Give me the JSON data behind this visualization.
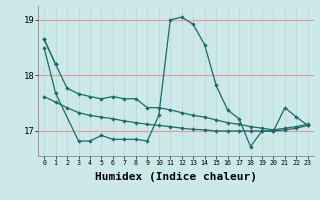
{
  "bg_color": "#cce8e8",
  "grid_color_v": "#b8d8d8",
  "grid_color_h": "#e89898",
  "line_color": "#1a6b6b",
  "xlabel": "Humidex (Indice chaleur)",
  "xlim": [
    -0.5,
    23.5
  ],
  "ylim": [
    16.55,
    19.25
  ],
  "yticks": [
    17,
    18,
    19
  ],
  "xticks": [
    0,
    1,
    2,
    3,
    4,
    5,
    6,
    7,
    8,
    9,
    10,
    11,
    12,
    13,
    14,
    15,
    16,
    17,
    18,
    19,
    20,
    21,
    22,
    23
  ],
  "series": [
    [
      18.65,
      18.2,
      null,
      null,
      null,
      null,
      null,
      null,
      null,
      null,
      null,
      null,
      null,
      null,
      null,
      null,
      null,
      null,
      null,
      null,
      null,
      null,
      null,
      null
    ],
    [
      18.65,
      18.2,
      17.77,
      17.67,
      17.62,
      17.58,
      17.62,
      17.58,
      17.58,
      17.42,
      17.42,
      17.38,
      17.33,
      17.28,
      17.25,
      17.2,
      17.15,
      17.12,
      17.08,
      17.05,
      17.02,
      17.05,
      17.08,
      17.12
    ],
    [
      18.5,
      17.68,
      null,
      16.82,
      16.82,
      16.92,
      16.85,
      16.85,
      16.85,
      16.82,
      17.28,
      19.0,
      19.05,
      18.92,
      18.55,
      17.82,
      17.38,
      17.22,
      16.72,
      17.0,
      17.0,
      17.42,
      17.25,
      17.1
    ],
    [
      17.62,
      17.52,
      17.42,
      17.33,
      17.28,
      17.25,
      17.22,
      17.18,
      17.15,
      17.12,
      17.1,
      17.08,
      17.05,
      17.03,
      17.02,
      17.0,
      17.0,
      17.0,
      17.0,
      17.0,
      17.0,
      17.02,
      17.05,
      17.1
    ]
  ]
}
